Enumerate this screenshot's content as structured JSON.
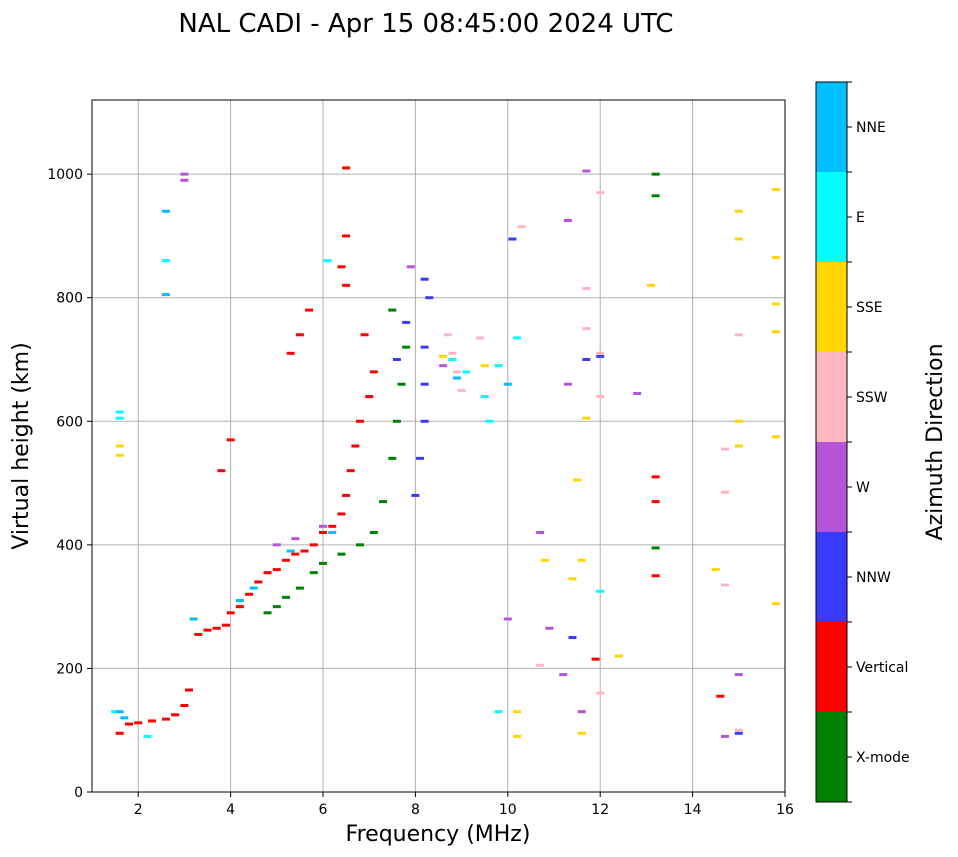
{
  "chart_data": {
    "type": "scatter",
    "title": "NAL CADI - Apr 15 08:45:00 2024 UTC",
    "xlabel": "Frequency (MHz)",
    "ylabel": "Virtual height (km)",
    "xlim": [
      1,
      16
    ],
    "ylim": [
      0,
      1120
    ],
    "xticks": [
      2,
      4,
      6,
      8,
      10,
      12,
      14,
      16
    ],
    "yticks": [
      0,
      200,
      400,
      600,
      800,
      1000
    ],
    "grid": true,
    "colorbar": {
      "label": "Azimuth Direction",
      "categories": [
        {
          "name": "X-mode",
          "color": "#008000"
        },
        {
          "name": "Vertical",
          "color": "#ff0000"
        },
        {
          "name": "NNW",
          "color": "#3a3aff"
        },
        {
          "name": "W",
          "color": "#b455d8"
        },
        {
          "name": "SSW",
          "color": "#ffb6c1"
        },
        {
          "name": "SSE",
          "color": "#ffd700"
        },
        {
          "name": "E",
          "color": "#00ffff"
        },
        {
          "name": "NNE",
          "color": "#00bfff"
        }
      ]
    },
    "series": [
      {
        "name": "Vertical",
        "points": [
          [
            1.6,
            95
          ],
          [
            1.8,
            110
          ],
          [
            2.0,
            112
          ],
          [
            2.3,
            115
          ],
          [
            2.6,
            118
          ],
          [
            2.8,
            125
          ],
          [
            3.0,
            140
          ],
          [
            3.1,
            165
          ],
          [
            3.3,
            255
          ],
          [
            3.5,
            262
          ],
          [
            3.7,
            265
          ],
          [
            3.9,
            270
          ],
          [
            4.0,
            290
          ],
          [
            4.2,
            300
          ],
          [
            4.4,
            320
          ],
          [
            4.6,
            340
          ],
          [
            4.8,
            355
          ],
          [
            5.0,
            360
          ],
          [
            5.2,
            375
          ],
          [
            5.4,
            385
          ],
          [
            5.6,
            390
          ],
          [
            5.8,
            400
          ],
          [
            6.0,
            420
          ],
          [
            6.2,
            430
          ],
          [
            6.4,
            450
          ],
          [
            6.5,
            480
          ],
          [
            6.6,
            520
          ],
          [
            6.7,
            560
          ],
          [
            6.8,
            600
          ],
          [
            7.0,
            640
          ],
          [
            7.1,
            680
          ],
          [
            6.9,
            740
          ],
          [
            6.5,
            820
          ],
          [
            6.4,
            850
          ],
          [
            6.5,
            900
          ],
          [
            6.5,
            1010
          ],
          [
            5.7,
            780
          ],
          [
            5.5,
            740
          ],
          [
            5.3,
            710
          ],
          [
            4.0,
            570
          ],
          [
            3.8,
            520
          ],
          [
            13.2,
            510
          ],
          [
            13.2,
            470
          ],
          [
            13.2,
            350
          ],
          [
            11.9,
            215
          ],
          [
            14.6,
            155
          ]
        ]
      },
      {
        "name": "X-mode",
        "points": [
          [
            4.8,
            290
          ],
          [
            5.0,
            300
          ],
          [
            5.2,
            315
          ],
          [
            5.5,
            330
          ],
          [
            5.8,
            355
          ],
          [
            6.0,
            370
          ],
          [
            6.4,
            385
          ],
          [
            6.8,
            400
          ],
          [
            7.1,
            420
          ],
          [
            7.3,
            470
          ],
          [
            7.5,
            540
          ],
          [
            7.6,
            600
          ],
          [
            7.7,
            660
          ],
          [
            7.8,
            720
          ],
          [
            7.5,
            780
          ],
          [
            13.2,
            1000
          ],
          [
            13.2,
            965
          ],
          [
            13.2,
            395
          ]
        ]
      },
      {
        "name": "NNW",
        "points": [
          [
            8.0,
            480
          ],
          [
            8.1,
            540
          ],
          [
            8.2,
            600
          ],
          [
            8.2,
            660
          ],
          [
            8.2,
            720
          ],
          [
            8.3,
            800
          ],
          [
            8.2,
            830
          ],
          [
            7.8,
            760
          ],
          [
            7.6,
            700
          ],
          [
            10.1,
            895
          ],
          [
            11.7,
            700
          ],
          [
            12.0,
            705
          ],
          [
            11.4,
            250
          ],
          [
            15.0,
            95
          ]
        ]
      },
      {
        "name": "W",
        "points": [
          [
            3.0,
            1000
          ],
          [
            3.0,
            990
          ],
          [
            5.0,
            400
          ],
          [
            5.4,
            410
          ],
          [
            6.0,
            430
          ],
          [
            7.9,
            850
          ],
          [
            8.6,
            690
          ],
          [
            11.7,
            1005
          ],
          [
            11.3,
            925
          ],
          [
            10.0,
            280
          ],
          [
            10.7,
            420
          ],
          [
            10.9,
            265
          ],
          [
            11.2,
            190
          ],
          [
            11.6,
            130
          ],
          [
            12.8,
            645
          ],
          [
            14.7,
            90
          ],
          [
            15.0,
            190
          ],
          [
            11.3,
            660
          ]
        ]
      },
      {
        "name": "SSW",
        "points": [
          [
            8.7,
            740
          ],
          [
            8.8,
            710
          ],
          [
            8.9,
            680
          ],
          [
            9.0,
            650
          ],
          [
            9.4,
            735
          ],
          [
            12.0,
            970
          ],
          [
            11.7,
            815
          ],
          [
            11.7,
            750
          ],
          [
            12.0,
            710
          ],
          [
            12.0,
            640
          ],
          [
            10.3,
            915
          ],
          [
            10.7,
            205
          ],
          [
            12.0,
            160
          ],
          [
            14.7,
            485
          ],
          [
            14.7,
            555
          ],
          [
            14.7,
            335
          ],
          [
            15.0,
            740
          ],
          [
            15.0,
            100
          ]
        ]
      },
      {
        "name": "SSE",
        "points": [
          [
            1.6,
            560
          ],
          [
            1.6,
            545
          ],
          [
            8.6,
            705
          ],
          [
            9.5,
            690
          ],
          [
            11.5,
            505
          ],
          [
            11.6,
            375
          ],
          [
            11.4,
            345
          ],
          [
            11.7,
            605
          ],
          [
            12.4,
            220
          ],
          [
            13.1,
            820
          ],
          [
            14.5,
            360
          ],
          [
            15.0,
            940
          ],
          [
            15.0,
            895
          ],
          [
            15.0,
            600
          ],
          [
            15.0,
            560
          ],
          [
            15.8,
            975
          ],
          [
            15.8,
            865
          ],
          [
            15.8,
            790
          ],
          [
            15.8,
            745
          ],
          [
            15.8,
            575
          ],
          [
            15.8,
            305
          ],
          [
            10.2,
            130
          ],
          [
            10.2,
            90
          ],
          [
            10.8,
            375
          ],
          [
            11.6,
            95
          ]
        ]
      },
      {
        "name": "E",
        "points": [
          [
            1.6,
            615
          ],
          [
            1.6,
            605
          ],
          [
            1.5,
            130
          ],
          [
            2.2,
            90
          ],
          [
            2.6,
            860
          ],
          [
            8.8,
            700
          ],
          [
            9.1,
            680
          ],
          [
            9.5,
            640
          ],
          [
            9.6,
            600
          ],
          [
            9.8,
            690
          ],
          [
            10.2,
            735
          ],
          [
            9.8,
            130
          ],
          [
            12.0,
            325
          ],
          [
            6.1,
            860
          ]
        ]
      },
      {
        "name": "NNE",
        "points": [
          [
            1.6,
            130
          ],
          [
            1.7,
            120
          ],
          [
            2.6,
            805
          ],
          [
            2.6,
            940
          ],
          [
            3.2,
            280
          ],
          [
            4.2,
            310
          ],
          [
            4.5,
            330
          ],
          [
            5.3,
            390
          ],
          [
            6.2,
            420
          ],
          [
            8.9,
            670
          ],
          [
            10.0,
            660
          ]
        ]
      }
    ]
  }
}
